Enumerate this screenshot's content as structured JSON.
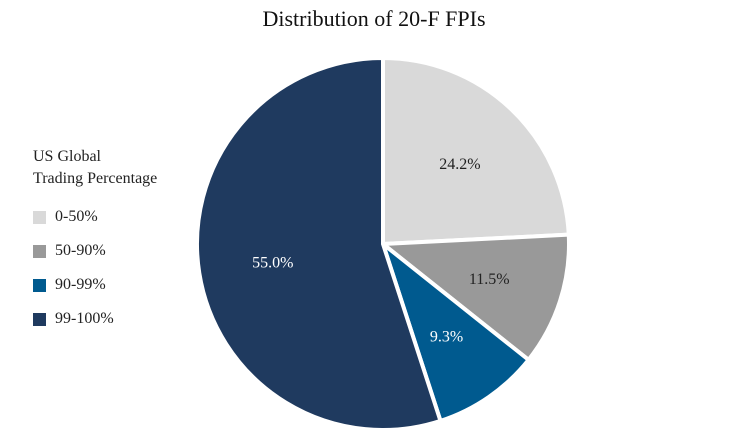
{
  "chart_data": {
    "type": "pie",
    "title": "Distribution of 20-F FPIs",
    "legend_title": "US Global Trading Percentage",
    "legend_title_lines": [
      "US Global",
      "Trading Percentage"
    ],
    "legend_position": "left",
    "slices": [
      {
        "label": "0-50%",
        "value": 24.2,
        "display": "24.2%",
        "color": "#d9d9d9",
        "text_color": "#222222"
      },
      {
        "label": "50-90%",
        "value": 11.5,
        "display": "11.5%",
        "color": "#999999",
        "text_color": "#222222"
      },
      {
        "label": "90-99%",
        "value": 9.3,
        "display": "9.3%",
        "color": "#005a8f",
        "text_color": "#ffffff"
      },
      {
        "label": "99-100%",
        "value": 55.0,
        "display": "55.0%",
        "color": "#1f3a5f",
        "text_color": "#ffffff"
      }
    ]
  }
}
